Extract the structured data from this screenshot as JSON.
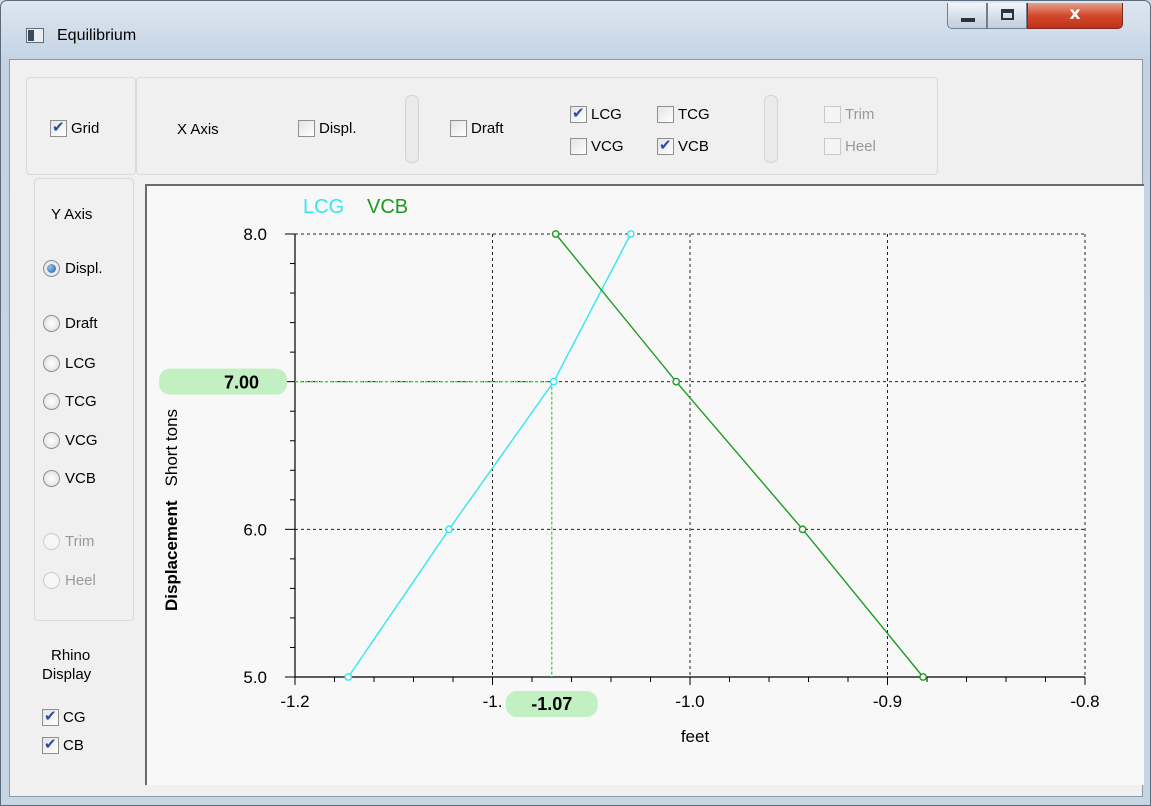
{
  "window": {
    "title": "Equilibrium",
    "close_glyph": "x",
    "controls": [
      "minimize-icon",
      "maximize-icon",
      "close-icon"
    ]
  },
  "toolbar": {
    "grid": {
      "label": "Grid",
      "checked": true
    },
    "x_axis_label": "X Axis",
    "displ": {
      "label": "Displ.",
      "checked": false
    },
    "draft": {
      "label": "Draft",
      "checked": false
    },
    "lcg": {
      "label": "LCG",
      "checked": true
    },
    "tcg": {
      "label": "TCG",
      "checked": false
    },
    "vcg": {
      "label": "VCG",
      "checked": false
    },
    "vcb": {
      "label": "VCB",
      "checked": true
    },
    "trim": {
      "label": "Trim",
      "checked": false,
      "disabled": true
    },
    "heel": {
      "label": "Heel",
      "checked": false,
      "disabled": true
    }
  },
  "y_axis_panel": {
    "title": "Y Axis",
    "selected": "Displ.",
    "options": [
      {
        "label": "Displ.",
        "checked": true,
        "disabled": false
      },
      {
        "label": "Draft",
        "checked": false,
        "disabled": false
      },
      {
        "label": "LCG",
        "checked": false,
        "disabled": false
      },
      {
        "label": "TCG",
        "checked": false,
        "disabled": false
      },
      {
        "label": "VCG",
        "checked": false,
        "disabled": false
      },
      {
        "label": "VCB",
        "checked": false,
        "disabled": false
      },
      {
        "label": "Trim",
        "checked": false,
        "disabled": true
      },
      {
        "label": "Heel",
        "checked": false,
        "disabled": true
      }
    ]
  },
  "rhino_display": {
    "title_line1": "Rhino",
    "title_line2": "Display",
    "cg": {
      "label": "CG",
      "checked": true
    },
    "cb": {
      "label": "CB",
      "checked": true
    }
  },
  "chart_data": {
    "type": "line",
    "legend": [
      "LCG",
      "VCB"
    ],
    "legend_placement": "top-left",
    "colors": {
      "LCG": "#33e6f2",
      "VCB": "#1f9a1f",
      "crosshair": "#33dd33",
      "marker_bg": "#c2f0c2"
    },
    "series": [
      {
        "name": "LCG",
        "points": [
          [
            -1.173,
            5.0
          ],
          [
            -1.122,
            6.0
          ],
          [
            -1.069,
            7.0
          ],
          [
            -1.03,
            8.0
          ]
        ]
      },
      {
        "name": "VCB",
        "points": [
          [
            -1.068,
            8.0
          ],
          [
            -1.007,
            7.0
          ],
          [
            -0.943,
            6.0
          ],
          [
            -0.882,
            5.0
          ]
        ]
      }
    ],
    "xlabel": "feet",
    "ylabel_bold": "Displacement",
    "ylabel_unit": "Short tons",
    "xlim": [
      -1.2,
      -0.8
    ],
    "ylim": [
      5.0,
      8.0
    ],
    "x_ticks": [
      "-1.2",
      "-1.",
      "-1.0",
      "-0.9",
      "-0.8"
    ],
    "y_ticks": [
      "5.0",
      "6.0",
      "7.0",
      "8.0"
    ],
    "grid": true,
    "crosshair": {
      "x": -1.07,
      "y": 7.0,
      "x_label": "-1.07",
      "y_label": "7.00"
    }
  }
}
